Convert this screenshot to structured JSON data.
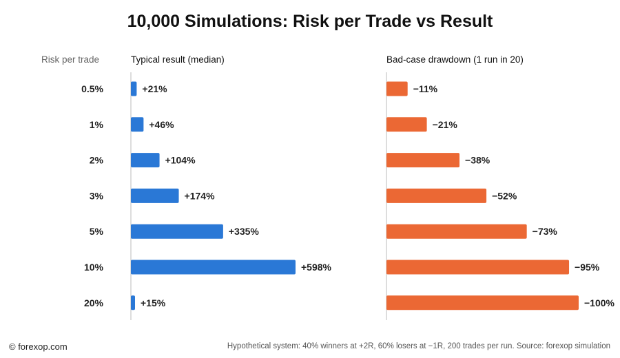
{
  "title": "10,000 Simulations: Risk per Trade vs Result",
  "headers": {
    "risk": "Risk per trade",
    "median": "Typical result (median)",
    "drawdown": "Bad-case drawdown (1 run in 20)"
  },
  "footer": {
    "left": "© forexop.com",
    "right": "Hypothetical system: 40% winners at +2R, 60% losers at −1R, 200 trades per run. Source: forexop simulation"
  },
  "colors": {
    "median_bar": "#2a78d6",
    "drawdown_bar": "#eb6834",
    "axis": "#bbbbbb"
  },
  "chart_data": [
    {
      "type": "bar",
      "orientation": "horizontal",
      "title": "Typical result (median)",
      "categories": [
        "0.5%",
        "1%",
        "2%",
        "3%",
        "5%",
        "10%",
        "20%"
      ],
      "values": [
        21,
        46,
        104,
        174,
        335,
        598,
        15
      ],
      "labels": [
        "+21%",
        "+46%",
        "+104%",
        "+174%",
        "+335%",
        "+598%",
        "+15%"
      ],
      "xlim": [
        0,
        598
      ]
    },
    {
      "type": "bar",
      "orientation": "horizontal",
      "title": "Bad-case drawdown (1 run in 20)",
      "categories": [
        "0.5%",
        "1%",
        "2%",
        "3%",
        "5%",
        "10%",
        "20%"
      ],
      "values": [
        11,
        21,
        38,
        52,
        73,
        95,
        100
      ],
      "labels": [
        "−11%",
        "−21%",
        "−38%",
        "−52%",
        "−73%",
        "−95%",
        "−100%"
      ],
      "xlim": [
        0,
        100
      ]
    }
  ]
}
